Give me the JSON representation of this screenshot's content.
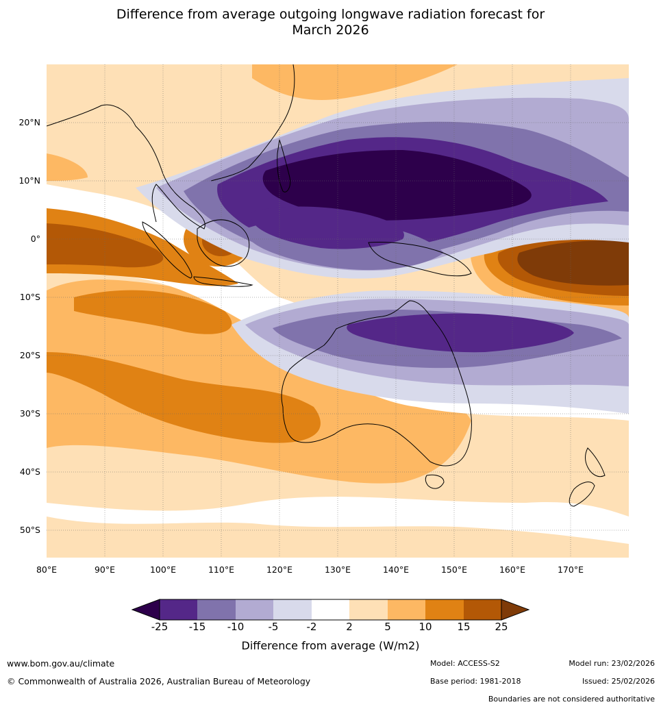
{
  "title": {
    "line1": "Difference from average outgoing longwave radiation forecast for",
    "line2": "March 2026"
  },
  "map": {
    "lat_labels": [
      "20°N",
      "10°N",
      "0°",
      "10°S",
      "20°S",
      "30°S",
      "40°S",
      "50°S"
    ],
    "lon_labels": [
      "80°E",
      "90°E",
      "100°E",
      "110°E",
      "120°E",
      "130°E",
      "140°E",
      "150°E",
      "160°E",
      "170°E"
    ],
    "colors": {
      "neg25": "#2d004b",
      "neg15_25": "#542788",
      "neg10_15": "#8073ac",
      "neg5_10": "#b2abd2",
      "neg2_5": "#d8daeb",
      "neutral": "#ffffff",
      "pos2_5": "#fee0b6",
      "pos5_10": "#fdb863",
      "pos10_15": "#e08214",
      "pos15_25": "#b35806",
      "pos25": "#7f3b08"
    }
  },
  "colorbar": {
    "ticks": [
      "-25",
      "-15",
      "-10",
      "-5",
      "-2",
      "2",
      "5",
      "10",
      "15",
      "25"
    ],
    "title": "Difference from average (W/m2)"
  },
  "footer": {
    "website": "www.bom.gov.au/climate",
    "copyright": "© Commonwealth of Australia 2026, Australian Bureau of Meteorology",
    "model": "Model: ACCESS-S2",
    "base_period": "Base period: 1981-2018",
    "model_run": "Model run: 23/02/2026",
    "issued": "Issued: 25/02/2026",
    "disclaimer": "Boundaries are not considered authoritative"
  }
}
